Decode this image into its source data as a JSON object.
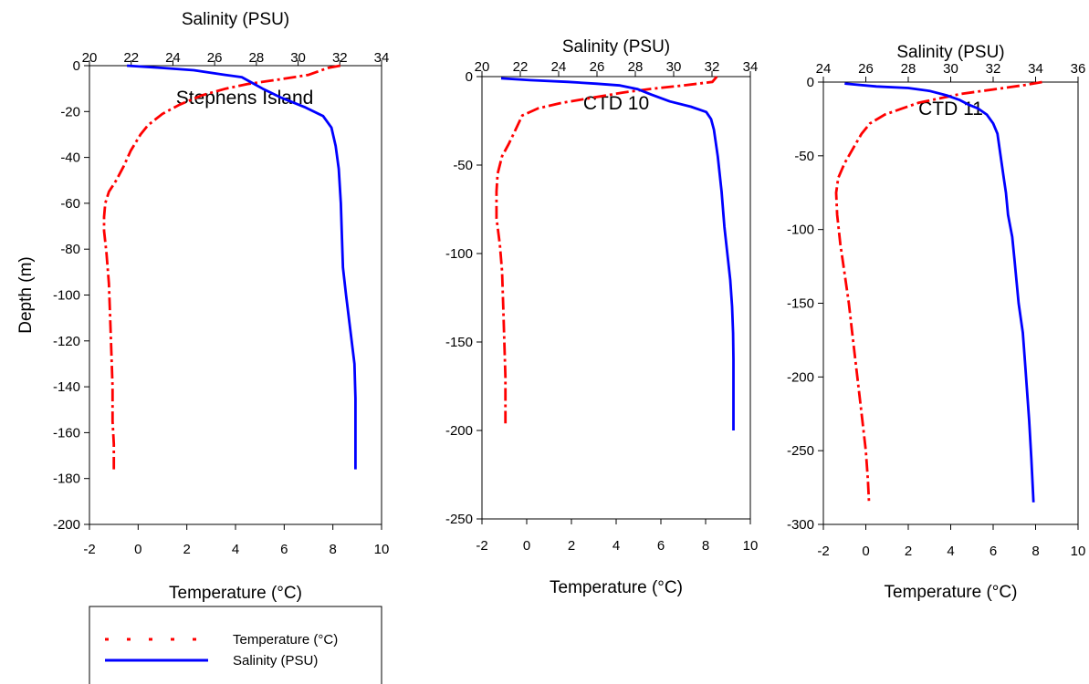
{
  "chart_data": [
    {
      "type": "line",
      "title": "Stephens Island",
      "xlabel_bottom": "Temperature (°C)",
      "xlabel_top": "Salinity (PSU)",
      "ylabel": "Depth (m)",
      "temp_lim": [
        -2,
        10
      ],
      "sal_lim": [
        20,
        34
      ],
      "depth_lim": [
        -200,
        0
      ],
      "temp_ticks": [
        -2,
        0,
        2,
        4,
        6,
        8,
        10
      ],
      "sal_ticks": [
        20,
        22,
        24,
        26,
        28,
        30,
        32,
        34
      ],
      "depth_ticks": [
        0,
        -20,
        -40,
        -60,
        -80,
        -100,
        -120,
        -140,
        -160,
        -180,
        -200
      ],
      "series": [
        {
          "name": "Temperature (°C)",
          "axis": "temperature",
          "color": "#ff0000",
          "style": "dashed",
          "points": [
            [
              8.3,
              0
            ],
            [
              7.8,
              -1
            ],
            [
              7.0,
              -4
            ],
            [
              5.8,
              -6
            ],
            [
              4.5,
              -8
            ],
            [
              3.6,
              -10
            ],
            [
              2.6,
              -13
            ],
            [
              1.7,
              -17
            ],
            [
              1.0,
              -21
            ],
            [
              0.4,
              -26
            ],
            [
              0.1,
              -30
            ],
            [
              -0.3,
              -37
            ],
            [
              -0.6,
              -44
            ],
            [
              -0.9,
              -50
            ],
            [
              -1.2,
              -55
            ],
            [
              -1.35,
              -60
            ],
            [
              -1.4,
              -66
            ],
            [
              -1.4,
              -72
            ],
            [
              -1.3,
              -82
            ],
            [
              -1.2,
              -95
            ],
            [
              -1.15,
              -110
            ],
            [
              -1.1,
              -125
            ],
            [
              -1.05,
              -140
            ],
            [
              -1.05,
              -155
            ],
            [
              -1.0,
              -165
            ],
            [
              -1.0,
              -176
            ]
          ]
        },
        {
          "name": "Salinity (PSU)",
          "axis": "salinity",
          "color": "#0000ff",
          "style": "solid",
          "points": [
            [
              21.8,
              0
            ],
            [
              23.5,
              -1
            ],
            [
              25.0,
              -2
            ],
            [
              26.5,
              -4
            ],
            [
              27.3,
              -5
            ],
            [
              27.7,
              -7
            ],
            [
              28.3,
              -10
            ],
            [
              29.2,
              -14
            ],
            [
              30.3,
              -18
            ],
            [
              31.2,
              -22
            ],
            [
              31.6,
              -27
            ],
            [
              31.8,
              -35
            ],
            [
              31.95,
              -45
            ],
            [
              32.05,
              -60
            ],
            [
              32.1,
              -75
            ],
            [
              32.15,
              -88
            ],
            [
              32.3,
              -100
            ],
            [
              32.5,
              -115
            ],
            [
              32.7,
              -130
            ],
            [
              32.75,
              -145
            ],
            [
              32.75,
              -160
            ],
            [
              32.75,
              -176
            ]
          ]
        }
      ]
    },
    {
      "type": "line",
      "title": "CTD 10",
      "xlabel_bottom": "Temperature (°C)",
      "xlabel_top": "Salinity (PSU)",
      "ylabel": "",
      "temp_lim": [
        -2,
        10
      ],
      "sal_lim": [
        20,
        34
      ],
      "depth_lim": [
        -250,
        0
      ],
      "temp_ticks": [
        -2,
        0,
        2,
        4,
        6,
        8,
        10
      ],
      "sal_ticks": [
        20,
        22,
        24,
        26,
        28,
        30,
        32,
        34
      ],
      "depth_ticks": [
        0,
        -50,
        -100,
        -150,
        -200,
        -250
      ],
      "series": [
        {
          "name": "Temperature (°C)",
          "axis": "temperature",
          "color": "#ff0000",
          "style": "dashed",
          "points": [
            [
              8.5,
              0
            ],
            [
              8.3,
              -3
            ],
            [
              7.0,
              -5
            ],
            [
              5.5,
              -7
            ],
            [
              4.3,
              -9
            ],
            [
              2.9,
              -12
            ],
            [
              1.5,
              -15
            ],
            [
              0.5,
              -18
            ],
            [
              -0.2,
              -22
            ],
            [
              -0.5,
              -30
            ],
            [
              -0.8,
              -38
            ],
            [
              -1.1,
              -45
            ],
            [
              -1.3,
              -55
            ],
            [
              -1.35,
              -65
            ],
            [
              -1.35,
              -80
            ],
            [
              -1.2,
              -95
            ],
            [
              -1.1,
              -110
            ],
            [
              -1.05,
              -130
            ],
            [
              -1.0,
              -150
            ],
            [
              -0.95,
              -170
            ],
            [
              -0.95,
              -196
            ]
          ]
        },
        {
          "name": "Salinity (PSU)",
          "axis": "salinity",
          "color": "#0000ff",
          "style": "solid",
          "points": [
            [
              21.0,
              -1
            ],
            [
              22.5,
              -2
            ],
            [
              24.5,
              -3
            ],
            [
              26.0,
              -4
            ],
            [
              27.2,
              -5
            ],
            [
              28.1,
              -7
            ],
            [
              28.8,
              -10
            ],
            [
              29.8,
              -14
            ],
            [
              30.9,
              -17
            ],
            [
              31.7,
              -20
            ],
            [
              31.95,
              -24
            ],
            [
              32.1,
              -30
            ],
            [
              32.3,
              -45
            ],
            [
              32.5,
              -65
            ],
            [
              32.65,
              -85
            ],
            [
              32.8,
              -100
            ],
            [
              32.95,
              -115
            ],
            [
              33.05,
              -130
            ],
            [
              33.1,
              -145
            ],
            [
              33.12,
              -160
            ],
            [
              33.12,
              -180
            ],
            [
              33.12,
              -200
            ]
          ]
        }
      ]
    },
    {
      "type": "line",
      "title": "CTD 11",
      "xlabel_bottom": "Temperature (°C)",
      "xlabel_top": "Salinity (PSU)",
      "ylabel": "",
      "temp_lim": [
        -2,
        10
      ],
      "sal_lim": [
        24,
        36
      ],
      "depth_lim": [
        -300,
        0
      ],
      "temp_ticks": [
        -2,
        0,
        2,
        4,
        6,
        8,
        10
      ],
      "sal_ticks": [
        24,
        26,
        28,
        30,
        32,
        34,
        36
      ],
      "depth_ticks": [
        0,
        -50,
        -100,
        -150,
        -200,
        -250,
        -300
      ],
      "series": [
        {
          "name": "Temperature (°C)",
          "axis": "temperature",
          "color": "#ff0000",
          "style": "dashed",
          "points": [
            [
              8.3,
              0
            ],
            [
              7.5,
              -2
            ],
            [
              6.0,
              -5
            ],
            [
              4.5,
              -8
            ],
            [
              3.5,
              -11
            ],
            [
              2.5,
              -14
            ],
            [
              1.7,
              -18
            ],
            [
              0.9,
              -22
            ],
            [
              0.2,
              -28
            ],
            [
              -0.2,
              -35
            ],
            [
              -0.6,
              -45
            ],
            [
              -1.0,
              -55
            ],
            [
              -1.3,
              -65
            ],
            [
              -1.4,
              -75
            ],
            [
              -1.35,
              -90
            ],
            [
              -1.2,
              -110
            ],
            [
              -1.0,
              -130
            ],
            [
              -0.8,
              -150
            ],
            [
              -0.6,
              -175
            ],
            [
              -0.4,
              -200
            ],
            [
              -0.2,
              -225
            ],
            [
              0.0,
              -250
            ],
            [
              0.1,
              -270
            ],
            [
              0.15,
              -285
            ]
          ]
        },
        {
          "name": "Salinity (PSU)",
          "axis": "salinity",
          "color": "#0000ff",
          "style": "solid",
          "points": [
            [
              25.0,
              -1
            ],
            [
              26.5,
              -3
            ],
            [
              28.0,
              -4
            ],
            [
              29.0,
              -6
            ],
            [
              29.8,
              -9
            ],
            [
              30.4,
              -12
            ],
            [
              30.8,
              -15
            ],
            [
              31.3,
              -18
            ],
            [
              31.7,
              -22
            ],
            [
              32.0,
              -28
            ],
            [
              32.2,
              -35
            ],
            [
              32.3,
              -45
            ],
            [
              32.4,
              -55
            ],
            [
              32.5,
              -65
            ],
            [
              32.6,
              -75
            ],
            [
              32.7,
              -90
            ],
            [
              32.9,
              -105
            ],
            [
              33.0,
              -120
            ],
            [
              33.1,
              -135
            ],
            [
              33.2,
              -150
            ],
            [
              33.4,
              -170
            ],
            [
              33.5,
              -190
            ],
            [
              33.6,
              -210
            ],
            [
              33.7,
              -230
            ],
            [
              33.8,
              -255
            ],
            [
              33.85,
              -270
            ],
            [
              33.9,
              -285
            ]
          ]
        }
      ]
    }
  ],
  "legend": {
    "placement": "bottom-left",
    "entries": [
      {
        "label": "Temperature (°C)",
        "color": "#ff0000",
        "style": "dotted"
      },
      {
        "label": "Salinity (PSU)",
        "color": "#0000ff",
        "style": "solid"
      }
    ]
  }
}
